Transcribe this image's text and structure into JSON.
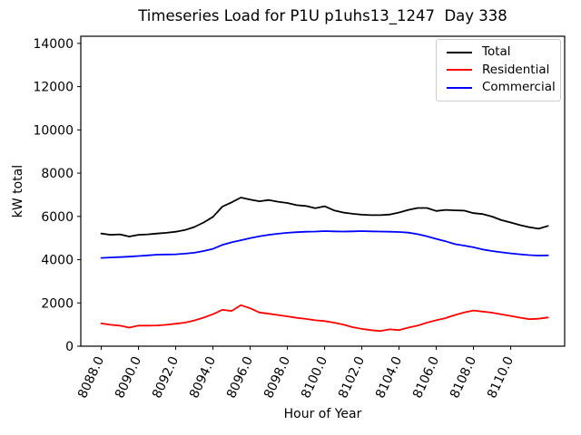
{
  "figure": {
    "title": "Timeseries Load for P1U p1uhs13_1247  Day 338",
    "xlabel": "Hour of Year",
    "ylabel": "kW total"
  },
  "legend": {
    "position": "upper right",
    "entries": [
      {
        "label": "Total",
        "color": "#000000"
      },
      {
        "label": "Residential",
        "color": "#ff0000"
      },
      {
        "label": "Commercial",
        "color": "#0000ff"
      }
    ]
  },
  "chart_data": {
    "type": "line",
    "title": "Timeseries Load for P1U p1uhs13_1247  Day 338",
    "xlabel": "Hour of Year",
    "ylabel": "kW total",
    "grid": false,
    "legend_position": "upper right",
    "xlim": [
      8086.9,
      8112.9
    ],
    "ylim": [
      0,
      14330
    ],
    "x_ticks": [
      8088,
      8090,
      8092,
      8094,
      8096,
      8098,
      8100,
      8102,
      8104,
      8106,
      8108,
      8110
    ],
    "x_tick_labels": [
      "8088.0",
      "8090.0",
      "8092.0",
      "8094.0",
      "8096.0",
      "8098.0",
      "8100.0",
      "8102.0",
      "8104.0",
      "8106.0",
      "8108.0",
      "8110.0"
    ],
    "x_tick_rotation": -65,
    "y_ticks": [
      0,
      2000,
      4000,
      6000,
      8000,
      10000,
      12000,
      14000
    ],
    "x": [
      8088.0,
      8088.5,
      8089.0,
      8089.5,
      8090.0,
      8090.5,
      8091.0,
      8091.5,
      8092.0,
      8092.5,
      8093.0,
      8093.5,
      8094.0,
      8094.5,
      8095.0,
      8095.5,
      8096.0,
      8096.5,
      8097.0,
      8097.5,
      8098.0,
      8098.5,
      8099.0,
      8099.5,
      8100.0,
      8100.5,
      8101.0,
      8101.5,
      8102.0,
      8102.5,
      8103.0,
      8103.5,
      8104.0,
      8104.5,
      8105.0,
      8105.5,
      8106.0,
      8106.5,
      8107.0,
      8107.5,
      8108.0,
      8108.5,
      8109.0,
      8109.5,
      8110.0,
      8110.5,
      8111.0,
      8111.5,
      8112.0
    ],
    "series": [
      {
        "name": "Total",
        "color": "#000000",
        "values": [
          5210,
          5150,
          5170,
          5070,
          5150,
          5170,
          5210,
          5240,
          5290,
          5370,
          5510,
          5720,
          5980,
          6450,
          6650,
          6870,
          6780,
          6700,
          6760,
          6680,
          6620,
          6520,
          6480,
          6380,
          6470,
          6280,
          6180,
          6120,
          6080,
          6060,
          6060,
          6090,
          6180,
          6300,
          6390,
          6390,
          6250,
          6300,
          6280,
          6270,
          6150,
          6110,
          5990,
          5830,
          5720,
          5600,
          5500,
          5430,
          5560
        ]
      },
      {
        "name": "Residential",
        "color": "#ff0000",
        "values": [
          1050,
          990,
          950,
          860,
          950,
          950,
          960,
          990,
          1040,
          1090,
          1190,
          1320,
          1480,
          1680,
          1630,
          1900,
          1750,
          1560,
          1500,
          1440,
          1380,
          1310,
          1260,
          1200,
          1160,
          1090,
          1000,
          880,
          800,
          740,
          700,
          780,
          740,
          860,
          950,
          1090,
          1200,
          1300,
          1440,
          1560,
          1650,
          1600,
          1550,
          1470,
          1400,
          1320,
          1250,
          1270,
          1330
        ]
      },
      {
        "name": "Commercial",
        "color": "#0000ff",
        "values": [
          4080,
          4100,
          4120,
          4140,
          4170,
          4200,
          4230,
          4240,
          4250,
          4280,
          4320,
          4400,
          4500,
          4680,
          4800,
          4900,
          5000,
          5080,
          5150,
          5200,
          5240,
          5270,
          5290,
          5300,
          5320,
          5310,
          5300,
          5310,
          5320,
          5310,
          5300,
          5290,
          5280,
          5250,
          5180,
          5080,
          4960,
          4850,
          4720,
          4650,
          4570,
          4470,
          4400,
          4340,
          4290,
          4250,
          4210,
          4190,
          4200
        ]
      }
    ]
  }
}
